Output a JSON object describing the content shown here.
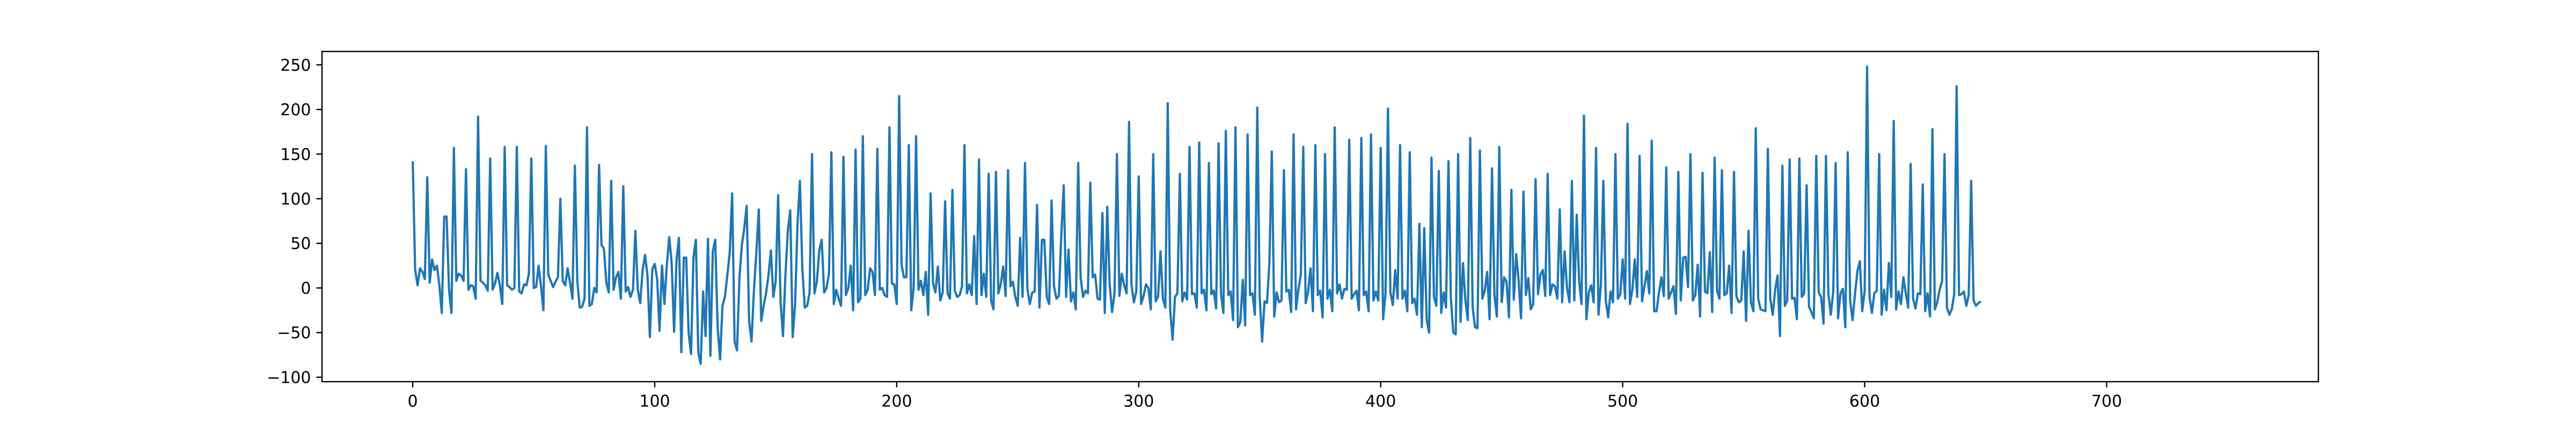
{
  "chart_data": {
    "type": "line",
    "title": "",
    "xlabel": "",
    "ylabel": "",
    "xlim": [
      -37.5,
      787.5
    ],
    "ylim": [
      -105,
      265
    ],
    "x_ticks": [
      0,
      100,
      200,
      300,
      400,
      500,
      600,
      700
    ],
    "y_ticks": [
      -100,
      -50,
      0,
      50,
      100,
      150,
      200,
      250
    ],
    "grid": false,
    "legend": "none",
    "line_color": "#1f77b4",
    "series": [
      {
        "x_start": 0,
        "x_step": 1,
        "values": [
          142,
          20,
          3,
          22,
          18,
          10,
          124,
          6,
          32,
          20,
          25,
          3,
          -28,
          80,
          80,
          -2,
          -28,
          157,
          8,
          16,
          14,
          8,
          133,
          -2,
          3,
          2,
          -12,
          192,
          8,
          6,
          3,
          -3,
          145,
          -2,
          5,
          17,
          3,
          -18,
          158,
          3,
          1,
          -2,
          0,
          158,
          -4,
          -6,
          4,
          3,
          16,
          145,
          0,
          1,
          25,
          2,
          -25,
          159,
          15,
          8,
          1,
          7,
          12,
          100,
          8,
          3,
          22,
          6,
          -12,
          137,
          8,
          -22,
          -21,
          -12,
          180,
          -20,
          -18,
          0,
          -5,
          138,
          48,
          44,
          6,
          -5,
          120,
          -2,
          12,
          18,
          -12,
          114,
          -4,
          1,
          -10,
          -2,
          64,
          -2,
          -17,
          20,
          37,
          14,
          -55,
          21,
          27,
          10,
          -48,
          25,
          -18,
          26,
          57,
          28,
          -49,
          31,
          56,
          -72,
          34,
          34,
          -50,
          -74,
          34,
          54,
          -72,
          -85,
          -4,
          -54,
          55,
          -76,
          41,
          54,
          -44,
          -80,
          -20,
          -10,
          14,
          40,
          106,
          -60,
          -70,
          11,
          48,
          67,
          92,
          -37,
          -60,
          -2,
          40,
          88,
          -37,
          -20,
          -6,
          14,
          42,
          -10,
          8,
          104,
          -15,
          -54,
          14,
          64,
          87,
          -55,
          -18,
          72,
          120,
          22,
          -22,
          -20,
          -5,
          150,
          -6,
          7,
          42,
          54,
          -5,
          0,
          16,
          152,
          -18,
          -2,
          -12,
          -20,
          147,
          -8,
          0,
          25,
          -25,
          155,
          -16,
          -12,
          170,
          -8,
          -2,
          22,
          18,
          -8,
          156,
          -2,
          0,
          -8,
          -10,
          180,
          5,
          4,
          -18,
          215,
          26,
          12,
          12,
          160,
          -25,
          0,
          170,
          -2,
          8,
          -8,
          18,
          -30,
          106,
          5,
          -5,
          24,
          -14,
          -5,
          97,
          -6,
          -12,
          110,
          -3,
          -10,
          -8,
          2,
          160,
          -6,
          4,
          -8,
          58,
          -18,
          144,
          -8,
          16,
          -10,
          128,
          -14,
          -24,
          130,
          -6,
          4,
          24,
          -9,
          132,
          2,
          7,
          -10,
          -20,
          56,
          -10,
          140,
          -1,
          -18,
          -5,
          -4,
          93,
          -22,
          54,
          54,
          -10,
          -18,
          98,
          2,
          -12,
          -9,
          58,
          115,
          -10,
          43,
          -15,
          -5,
          -24,
          140,
          12,
          -10,
          -3,
          -6,
          118,
          12,
          15,
          -12,
          -13,
          84,
          -28,
          91,
          4,
          -27,
          -6,
          150,
          -9,
          16,
          3,
          -6,
          186,
          4,
          -16,
          -4,
          125,
          -18,
          -9,
          4,
          0,
          -24,
          150,
          -15,
          -10,
          41,
          -12,
          -22,
          207,
          -24,
          -58,
          -10,
          -6,
          128,
          -15,
          -5,
          -13,
          158,
          -7,
          -6,
          -22,
          163,
          -6,
          -2,
          -25,
          140,
          -7,
          -3,
          -23,
          162,
          -6,
          -28,
          176,
          -8,
          -4,
          -36,
          180,
          -44,
          -38,
          9,
          -42,
          172,
          -8,
          -6,
          -30,
          202,
          -10,
          -60,
          -15,
          -17,
          28,
          153,
          -32,
          -5,
          -16,
          -14,
          132,
          -4,
          -2,
          -27,
          172,
          -24,
          -2,
          15,
          158,
          -17,
          -4,
          22,
          -26,
          160,
          -8,
          -3,
          -33,
          150,
          -12,
          -2,
          -26,
          180,
          -6,
          4,
          -12,
          -1,
          -2,
          166,
          -12,
          -7,
          -3,
          -25,
          168,
          -8,
          -4,
          -26,
          172,
          -14,
          -4,
          -14,
          157,
          -35,
          -6,
          201,
          -5,
          -19,
          20,
          -12,
          160,
          -12,
          -3,
          -26,
          152,
          -17,
          -12,
          -30,
          72,
          -44,
          67,
          -36,
          -50,
          146,
          -10,
          -20,
          131,
          -28,
          -5,
          -22,
          142,
          -12,
          -50,
          -52,
          150,
          -38,
          28,
          -14,
          -36,
          168,
          -22,
          -44,
          -45,
          154,
          -12,
          -3,
          18,
          -35,
          134,
          -8,
          -32,
          158,
          -16,
          12,
          7,
          -33,
          110,
          -13,
          38,
          8,
          -34,
          108,
          -8,
          11,
          -24,
          -18,
          122,
          -7,
          15,
          20,
          -9,
          128,
          -8,
          4,
          2,
          -12,
          88,
          -16,
          41,
          0,
          -16,
          120,
          -14,
          82,
          8,
          -18,
          193,
          -35,
          -5,
          3,
          -16,
          157,
          -30,
          4,
          120,
          -14,
          -33,
          -4,
          -16,
          150,
          -12,
          -7,
          32,
          -12,
          184,
          -18,
          -2,
          32,
          -10,
          148,
          -15,
          2,
          19,
          -6,
          165,
          -26,
          -26,
          -5,
          12,
          -9,
          135,
          -12,
          -5,
          2,
          -29,
          130,
          -14,
          34,
          35,
          1,
          150,
          -14,
          -8,
          26,
          -32,
          129,
          -4,
          -6,
          40,
          -27,
          146,
          -3,
          -12,
          132,
          -8,
          -6,
          25,
          -28,
          130,
          -9,
          -16,
          -14,
          41,
          -37,
          64,
          -16,
          -26,
          179,
          -12,
          -24,
          -25,
          -26,
          156,
          -12,
          -30,
          -2,
          14,
          -54,
          137,
          -20,
          -14,
          144,
          -12,
          -11,
          -35,
          145,
          -10,
          -6,
          115,
          -21,
          -27,
          -34,
          148,
          -5,
          -10,
          -40,
          148,
          -6,
          -30,
          -4,
          140,
          -34,
          -6,
          -1,
          -44,
          152,
          -14,
          -36,
          -7,
          19,
          30,
          -26,
          -3,
          248,
          -10,
          -28,
          -6,
          -3,
          150,
          -30,
          -2,
          -25,
          28,
          -10,
          187,
          -24,
          -4,
          -18,
          12,
          -6,
          -22,
          139,
          -12,
          -23,
          -6,
          -7,
          116,
          -26,
          -6,
          -32,
          178,
          -24,
          -16,
          -2,
          8,
          150,
          -22,
          -30,
          -24,
          -7,
          226,
          -8,
          -7,
          -4,
          -20,
          -8,
          120,
          -14,
          -20,
          -17,
          -15
        ]
      }
    ]
  }
}
